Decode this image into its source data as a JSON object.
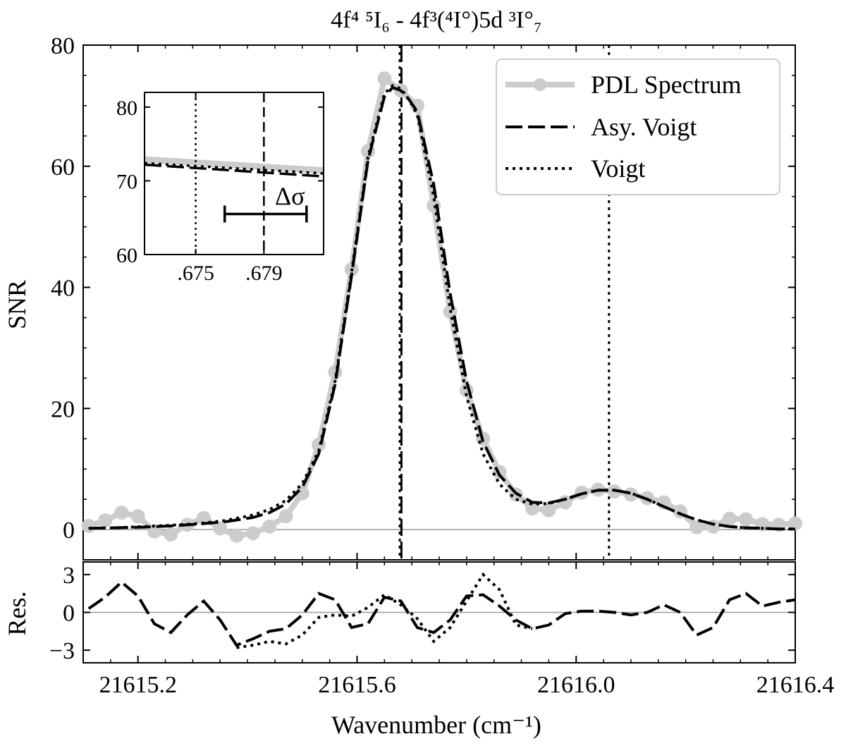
{
  "chart_data": {
    "type": "line",
    "title": "4f⁴ ⁵I₆ - 4f³(⁴I°)5d ³I°₇",
    "xlabel": "Wavenumber (cm⁻¹)",
    "xlim": [
      21615.1,
      21616.4
    ],
    "xticks": [
      21615.2,
      21615.6,
      21616.0,
      21616.4
    ],
    "xtick_labels": [
      "21615.2",
      "21615.6",
      "21616.0",
      "21616.4"
    ],
    "main": {
      "ylabel": "SNR",
      "ylim": [
        -5,
        80
      ],
      "yticks": [
        0,
        20,
        40,
        60,
        80
      ],
      "ytick_labels": [
        "0",
        "20",
        "40",
        "60",
        "80"
      ],
      "vlines": [
        {
          "x": 21615.678,
          "style": "dotted"
        },
        {
          "x": 21615.681,
          "style": "dashed"
        },
        {
          "x": 21616.06,
          "style": "dotted"
        }
      ],
      "series": [
        {
          "name": "PDL Spectrum",
          "style": "markers",
          "x": [
            21615.11,
            21615.14,
            21615.17,
            21615.2,
            21615.23,
            21615.26,
            21615.29,
            21615.32,
            21615.35,
            21615.38,
            21615.41,
            21615.44,
            21615.47,
            21615.5,
            21615.53,
            21615.56,
            21615.59,
            21615.62,
            21615.65,
            21615.68,
            21615.71,
            21615.74,
            21615.77,
            21615.8,
            21615.83,
            21615.86,
            21615.89,
            21615.92,
            21615.95,
            21615.98,
            21616.01,
            21616.04,
            21616.07,
            21616.1,
            21616.13,
            21616.16,
            21616.19,
            21616.22,
            21616.25,
            21616.28,
            21616.31,
            21616.34,
            21616.37,
            21616.4
          ],
          "values": [
            0.6,
            1.5,
            2.8,
            2.2,
            -0.3,
            -0.8,
            0.8,
            1.9,
            0.2,
            -1.0,
            -0.6,
            0.5,
            2.2,
            6.0,
            14.0,
            26.0,
            43.0,
            62.5,
            74.5,
            72.5,
            70.0,
            53.5,
            36.0,
            23.0,
            15.0,
            9.5,
            5.8,
            3.5,
            3.2,
            4.5,
            6.1,
            6.6,
            6.3,
            5.8,
            5.2,
            4.5,
            3.0,
            0.4,
            0.5,
            1.8,
            1.7,
            0.9,
            0.8,
            1.0
          ]
        },
        {
          "name": "Asy. Voigt",
          "style": "dashed",
          "x": [
            21615.11,
            21615.16,
            21615.21,
            21615.26,
            21615.31,
            21615.36,
            21615.41,
            21615.44,
            21615.47,
            21615.5,
            21615.53,
            21615.56,
            21615.59,
            21615.62,
            21615.65,
            21615.665,
            21615.68,
            21615.695,
            21615.71,
            21615.74,
            21615.77,
            21615.8,
            21615.83,
            21615.86,
            21615.89,
            21615.92,
            21615.95,
            21615.98,
            21616.01,
            21616.04,
            21616.07,
            21616.1,
            21616.13,
            21616.16,
            21616.19,
            21616.22,
            21616.25,
            21616.28,
            21616.31,
            21616.34,
            21616.37,
            21616.4
          ],
          "values": [
            0.2,
            0.3,
            0.4,
            0.6,
            0.9,
            1.3,
            2.0,
            2.8,
            4.2,
            7.0,
            12.5,
            24.0,
            42.0,
            61.0,
            71.5,
            73.0,
            72.5,
            71.0,
            69.0,
            57.0,
            39.0,
            24.5,
            14.5,
            9.0,
            6.0,
            4.5,
            4.4,
            5.0,
            5.9,
            6.5,
            6.5,
            6.0,
            5.0,
            3.8,
            2.6,
            1.6,
            0.9,
            0.5,
            0.3,
            0.2,
            0.1,
            0.1
          ]
        },
        {
          "name": "Voigt",
          "style": "dotted",
          "x": [
            21615.11,
            21615.16,
            21615.21,
            21615.26,
            21615.31,
            21615.36,
            21615.41,
            21615.44,
            21615.47,
            21615.5,
            21615.53,
            21615.56,
            21615.59,
            21615.62,
            21615.65,
            21615.665,
            21615.68,
            21615.695,
            21615.71,
            21615.74,
            21615.77,
            21615.8,
            21615.83,
            21615.86,
            21615.89,
            21615.92,
            21615.95,
            21615.98,
            21616.01,
            21616.04,
            21616.07,
            21616.1,
            21616.13,
            21616.16,
            21616.19,
            21616.22,
            21616.25,
            21616.28,
            21616.31,
            21616.34,
            21616.37,
            21616.4
          ],
          "values": [
            0.2,
            0.3,
            0.5,
            0.7,
            1.0,
            1.5,
            2.4,
            3.3,
            4.8,
            7.6,
            13.0,
            24.5,
            42.5,
            61.5,
            72.0,
            73.3,
            72.8,
            71.0,
            68.5,
            55.0,
            36.5,
            22.0,
            12.5,
            7.5,
            5.0,
            4.2,
            4.3,
            5.0,
            5.9,
            6.5,
            6.5,
            6.0,
            5.0,
            3.8,
            2.6,
            1.6,
            0.9,
            0.5,
            0.3,
            0.2,
            0.1,
            0.1
          ]
        }
      ],
      "legend": {
        "position": "top-right",
        "entries": [
          "PDL Spectrum",
          "Asy. Voigt",
          "Voigt"
        ]
      }
    },
    "residuals": {
      "ylabel": "Res.",
      "ylim": [
        -4,
        4
      ],
      "yticks": [
        -3,
        0,
        3
      ],
      "ytick_labels": [
        "−3",
        "0",
        "3"
      ],
      "series": [
        {
          "name": "Asy. Voigt",
          "style": "dashed",
          "x": [
            21615.11,
            21615.14,
            21615.17,
            21615.2,
            21615.23,
            21615.26,
            21615.29,
            21615.32,
            21615.35,
            21615.38,
            21615.41,
            21615.44,
            21615.47,
            21615.5,
            21615.53,
            21615.56,
            21615.59,
            21615.62,
            21615.65,
            21615.68,
            21615.71,
            21615.74,
            21615.77,
            21615.8,
            21615.83,
            21615.86,
            21615.89,
            21615.92,
            21615.95,
            21615.98,
            21616.01,
            21616.04,
            21616.07,
            21616.1,
            21616.13,
            21616.16,
            21616.19,
            21616.22,
            21616.25,
            21616.28,
            21616.31,
            21616.34,
            21616.37,
            21616.4
          ],
          "values": [
            0.3,
            1.2,
            2.4,
            1.3,
            -0.9,
            -1.6,
            -0.2,
            0.9,
            -0.6,
            -2.6,
            -2.1,
            -1.5,
            -1.3,
            -0.2,
            1.5,
            1.0,
            -1.2,
            -0.9,
            1.2,
            0.9,
            -1.2,
            -1.6,
            -0.6,
            1.3,
            1.4,
            0.5,
            -0.6,
            -1.3,
            -1.0,
            -0.1,
            0.1,
            0.1,
            0.0,
            -0.2,
            0.0,
            0.6,
            0.0,
            -1.8,
            -1.2,
            1.0,
            1.5,
            0.5,
            0.8,
            1.0
          ]
        },
        {
          "name": "Voigt",
          "style": "dotted",
          "x": [
            21615.38,
            21615.41,
            21615.44,
            21615.47,
            21615.5,
            21615.53,
            21615.56,
            21615.59,
            21615.62,
            21615.65,
            21615.68,
            21615.71,
            21615.74,
            21615.77,
            21615.8,
            21615.83,
            21615.86,
            21615.89,
            21615.92
          ],
          "values": [
            -2.8,
            -2.6,
            -2.3,
            -2.5,
            -1.8,
            -0.4,
            -0.2,
            -0.3,
            0.4,
            1.4,
            0.6,
            -0.5,
            -2.3,
            -1.2,
            0.9,
            3.0,
            1.8,
            -1.0,
            -1.3
          ]
        }
      ]
    },
    "inset": {
      "xlim": [
        21615.672,
        21615.6825
      ],
      "ylim": [
        60,
        82
      ],
      "yticks": [
        60,
        70,
        80
      ],
      "ytick_labels": [
        "60",
        "70",
        "80"
      ],
      "xticks": [
        21615.675,
        21615.679
      ],
      "xtick_labels": [
        ".675",
        ".679"
      ],
      "vlines": [
        {
          "x": 21615.675,
          "style": "dotted"
        },
        {
          "x": 21615.679,
          "style": "dashed"
        }
      ],
      "annotation": "Δσ",
      "delta_bar": {
        "x0": 21615.6767,
        "x1": 21615.6815,
        "y": 65.5
      },
      "series": [
        {
          "name": "PDL Spectrum",
          "style": "thick-gray",
          "x": [
            21615.672,
            21615.6825
          ],
          "values": [
            72.9,
            71.4
          ]
        },
        {
          "name": "Asy. Voigt",
          "style": "dashed",
          "x": [
            21615.672,
            21615.6825
          ],
          "values": [
            72.2,
            70.6
          ]
        },
        {
          "name": "Voigt",
          "style": "dotted",
          "x": [
            21615.672,
            21615.6825
          ],
          "values": [
            72.4,
            71.0
          ]
        }
      ]
    }
  }
}
